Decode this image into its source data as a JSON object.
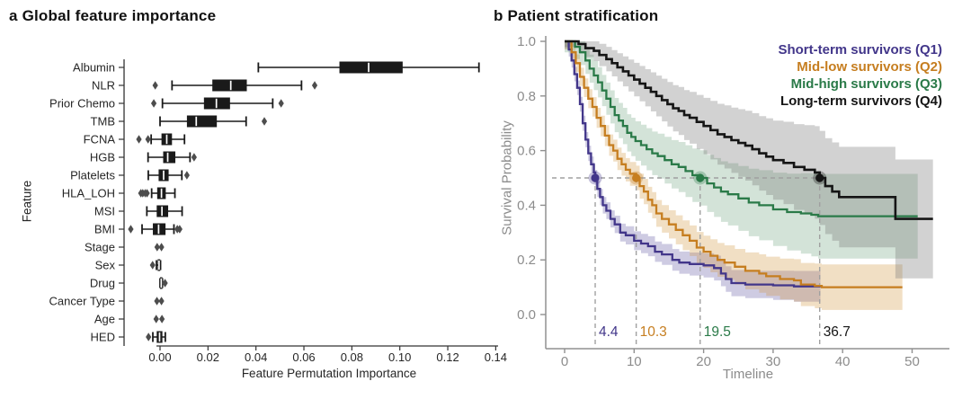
{
  "figure": {
    "panel_a": {
      "title": "a Global feature importance",
      "xlabel": "Feature Permutation Importance",
      "ylabel": "Feature"
    },
    "panel_b": {
      "title": "b Patient stratification",
      "xlabel": "Timeline",
      "ylabel": "Survival Probability"
    }
  },
  "colors": {
    "box_fill": "#1a1a1a",
    "box_line": "#1a1a1a",
    "median_line": "#ffffff",
    "outlier": "#4d4d4d",
    "axis_a": "#333333",
    "text_a": "#262626",
    "axis_b": "#909090",
    "text_b": "#8c8c8c",
    "dashed_guide": "#a0a0a0",
    "background": "#ffffff"
  },
  "chart_data": [
    {
      "type": "boxplot",
      "orientation": "horizontal",
      "title": "a Global feature importance",
      "xlabel": "Feature Permutation Importance",
      "ylabel": "Feature",
      "xlim": [
        -0.015,
        0.141
      ],
      "xticks": [
        0.0,
        0.02,
        0.04,
        0.06,
        0.08,
        0.1,
        0.12,
        0.14
      ],
      "xtick_labels": [
        "0.00",
        "0.02",
        "0.04",
        "0.06",
        "0.08",
        "0.10",
        "0.12",
        "0.14"
      ],
      "grid": false,
      "features": [
        {
          "name": "Albumin",
          "lo": 0.041,
          "q1": 0.075,
          "med": 0.087,
          "q3": 0.101,
          "hi": 0.133,
          "outliers": []
        },
        {
          "name": "NLR",
          "lo": 0.005,
          "q1": 0.022,
          "med": 0.0295,
          "q3": 0.036,
          "hi": 0.059,
          "outliers": [
            -0.002,
            0.0645
          ]
        },
        {
          "name": "Prior Chemo",
          "lo": 0.001,
          "q1": 0.0185,
          "med": 0.0235,
          "q3": 0.029,
          "hi": 0.047,
          "outliers": [
            -0.0026,
            0.0505
          ]
        },
        {
          "name": "TMB",
          "lo": 0.0,
          "q1": 0.0114,
          "med": 0.0151,
          "q3": 0.0235,
          "hi": 0.0359,
          "outliers": [
            0.0435
          ]
        },
        {
          "name": "FCNA",
          "lo": -0.0037,
          "q1": 0.0008,
          "med": 0.0028,
          "q3": 0.0048,
          "hi": 0.0102,
          "outliers": [
            -0.0088,
            -0.005
          ]
        },
        {
          "name": "HGB",
          "lo": -0.005,
          "q1": 0.0015,
          "med": 0.0032,
          "q3": 0.0062,
          "hi": 0.0125,
          "outliers": [
            0.0142
          ]
        },
        {
          "name": "Platelets",
          "lo": -0.0049,
          "q1": -0.0004,
          "med": 0.0015,
          "q3": 0.0034,
          "hi": 0.0091,
          "outliers": [
            0.0112
          ]
        },
        {
          "name": "HLA_LOH",
          "lo": -0.0035,
          "q1": -0.001,
          "med": 0.0006,
          "q3": 0.0022,
          "hi": 0.0062,
          "outliers": [
            -0.008,
            -0.0072,
            -0.0062,
            -0.0054
          ]
        },
        {
          "name": "MSI",
          "lo": -0.0055,
          "q1": -0.0012,
          "med": 0.0008,
          "q3": 0.0032,
          "hi": 0.0092,
          "outliers": []
        },
        {
          "name": "BMI",
          "lo": -0.0075,
          "q1": -0.0028,
          "med": -0.0006,
          "q3": 0.0021,
          "hi": 0.0058,
          "outliers": [
            -0.0122,
            0.0072,
            0.0082
          ]
        },
        {
          "name": "Stage",
          "lo": null,
          "q1": null,
          "med": null,
          "q3": null,
          "hi": null,
          "outliers": [
            -0.0012,
            0.0006
          ]
        },
        {
          "name": "Sex",
          "lo": -0.0015,
          "q1": -0.0008,
          "med": -0.0004,
          "q3": -0.0001,
          "hi": 0.0002,
          "outliers": [
            -0.0031
          ]
        },
        {
          "name": "Drug",
          "lo": 0.0,
          "q1": 0.0002,
          "med": 0.0005,
          "q3": 0.0008,
          "hi": 0.001,
          "outliers": [
            0.0021
          ]
        },
        {
          "name": "Cancer Type",
          "lo": null,
          "q1": null,
          "med": null,
          "q3": null,
          "hi": null,
          "outliers": [
            -0.0013,
            0.0006
          ]
        },
        {
          "name": "Age",
          "lo": null,
          "q1": null,
          "med": null,
          "q3": null,
          "hi": null,
          "outliers": [
            -0.0016,
            0.0008
          ]
        },
        {
          "name": "HED",
          "lo": -0.003,
          "q1": -0.0012,
          "med": -0.0002,
          "q3": 0.0008,
          "hi": 0.0022,
          "outliers": [
            -0.0048
          ]
        }
      ]
    },
    {
      "type": "line",
      "subtype": "kaplan-meier",
      "title": "b Patient stratification",
      "xlabel": "Timeline",
      "ylabel": "Survival Probability",
      "xlim": [
        -2.7,
        55.4
      ],
      "ylim": [
        -0.12,
        1.01
      ],
      "xticks": [
        0,
        10,
        20,
        30,
        40,
        50
      ],
      "xtick_labels": [
        "0",
        "10",
        "20",
        "30",
        "40",
        "50"
      ],
      "yticks": [
        0.0,
        0.2,
        0.4,
        0.6,
        0.8,
        1.0
      ],
      "ytick_labels": [
        "0.0",
        "0.2",
        "0.4",
        "0.6",
        "0.8",
        "1.0"
      ],
      "grid": false,
      "legend_position": "upper right",
      "median_guide_y": 0.5,
      "series": [
        {
          "name": "Short-term survivors (Q1)",
          "color": "#42368a",
          "band_color": "rgba(78,68,150,0.28)",
          "median": 4.4,
          "median_label": "4.4",
          "band_width": [
            0.025,
            0.06
          ],
          "steps": [
            [
              0,
              1
            ],
            [
              0.6,
              0.97
            ],
            [
              1,
              0.93
            ],
            [
              1.4,
              0.88
            ],
            [
              1.8,
              0.83
            ],
            [
              2.2,
              0.77
            ],
            [
              2.6,
              0.7
            ],
            [
              3,
              0.64
            ],
            [
              3.4,
              0.59
            ],
            [
              3.8,
              0.55
            ],
            [
              4.2,
              0.52
            ],
            [
              4.4,
              0.5
            ],
            [
              4.7,
              0.46
            ],
            [
              5.1,
              0.43
            ],
            [
              5.5,
              0.4
            ],
            [
              6,
              0.38
            ],
            [
              6.6,
              0.35
            ],
            [
              7.2,
              0.33
            ],
            [
              8,
              0.3
            ],
            [
              8.8,
              0.29
            ],
            [
              10,
              0.27
            ],
            [
              11,
              0.26
            ],
            [
              12,
              0.25
            ],
            [
              13,
              0.23
            ],
            [
              14,
              0.22
            ],
            [
              15.5,
              0.2
            ],
            [
              16.5,
              0.19
            ],
            [
              18,
              0.185
            ],
            [
              20,
              0.18
            ],
            [
              21.5,
              0.17
            ],
            [
              22.5,
              0.15
            ],
            [
              23.2,
              0.13
            ],
            [
              24,
              0.115
            ],
            [
              26,
              0.11
            ],
            [
              30,
              0.107
            ],
            [
              33,
              0.103
            ],
            [
              36.8,
              0.1
            ]
          ]
        },
        {
          "name": "Mid-low survivors (Q2)",
          "color": "#c67e20",
          "band_color": "rgba(210,150,60,0.30)",
          "median": 10.3,
          "median_label": "10.3",
          "band_width": [
            0.03,
            0.1
          ],
          "steps": [
            [
              0,
              1
            ],
            [
              1,
              0.96
            ],
            [
              1.6,
              0.92
            ],
            [
              2.2,
              0.87
            ],
            [
              2.8,
              0.83
            ],
            [
              3.4,
              0.79
            ],
            [
              4,
              0.76
            ],
            [
              4.6,
              0.72
            ],
            [
              5.2,
              0.69
            ],
            [
              5.8,
              0.655
            ],
            [
              6.4,
              0.62
            ],
            [
              7,
              0.6
            ],
            [
              7.6,
              0.57
            ],
            [
              8.2,
              0.55
            ],
            [
              8.8,
              0.53
            ],
            [
              9.4,
              0.515
            ],
            [
              10.3,
              0.5
            ],
            [
              10.8,
              0.47
            ],
            [
              11.4,
              0.45
            ],
            [
              12,
              0.42
            ],
            [
              12.6,
              0.4
            ],
            [
              13.2,
              0.37
            ],
            [
              14,
              0.35
            ],
            [
              15,
              0.33
            ],
            [
              16,
              0.31
            ],
            [
              17,
              0.29
            ],
            [
              18,
              0.27
            ],
            [
              19,
              0.245
            ],
            [
              20,
              0.23
            ],
            [
              21,
              0.215
            ],
            [
              22,
              0.2
            ],
            [
              23,
              0.19
            ],
            [
              24.5,
              0.175
            ],
            [
              26,
              0.16
            ],
            [
              28,
              0.15
            ],
            [
              29,
              0.14
            ],
            [
              31,
              0.13
            ],
            [
              33,
              0.125
            ],
            [
              34,
              0.11
            ],
            [
              36,
              0.105
            ],
            [
              37,
              0.1
            ],
            [
              48.6,
              0.1
            ]
          ]
        },
        {
          "name": "Mid-high survivors (Q3)",
          "color": "#2a7a48",
          "band_color": "rgba(80,145,100,0.25)",
          "median": 19.5,
          "median_label": "19.5",
          "band_width": [
            0.04,
            0.2
          ],
          "steps": [
            [
              0,
              1
            ],
            [
              1.5,
              0.98
            ],
            [
              2.2,
              0.96
            ],
            [
              3,
              0.93
            ],
            [
              3.6,
              0.9
            ],
            [
              4.2,
              0.875
            ],
            [
              4.8,
              0.85
            ],
            [
              5.4,
              0.82
            ],
            [
              6,
              0.79
            ],
            [
              6.6,
              0.76
            ],
            [
              7.2,
              0.73
            ],
            [
              7.8,
              0.71
            ],
            [
              8.4,
              0.69
            ],
            [
              9,
              0.665
            ],
            [
              9.6,
              0.65
            ],
            [
              10.2,
              0.635
            ],
            [
              11,
              0.62
            ],
            [
              11.8,
              0.605
            ],
            [
              12.6,
              0.59
            ],
            [
              13.4,
              0.58
            ],
            [
              14.4,
              0.565
            ],
            [
              15.4,
              0.55
            ],
            [
              16.4,
              0.54
            ],
            [
              17.4,
              0.525
            ],
            [
              18.4,
              0.51
            ],
            [
              19.5,
              0.5
            ],
            [
              20.5,
              0.48
            ],
            [
              21.5,
              0.465
            ],
            [
              22.5,
              0.45
            ],
            [
              23.5,
              0.44
            ],
            [
              25,
              0.425
            ],
            [
              26.5,
              0.41
            ],
            [
              28,
              0.4
            ],
            [
              30,
              0.385
            ],
            [
              32,
              0.375
            ],
            [
              34,
              0.37
            ],
            [
              35.5,
              0.365
            ],
            [
              36.5,
              0.36
            ],
            [
              50.8,
              0.36
            ]
          ]
        },
        {
          "name": "Long-term survivors (Q4)",
          "color": "#151515",
          "band_color": "rgba(115,115,115,0.32)",
          "median": 36.7,
          "median_label": "36.7",
          "band_width": [
            0.02,
            0.24
          ],
          "steps": [
            [
              0,
              1
            ],
            [
              2,
              0.99
            ],
            [
              3,
              0.975
            ],
            [
              4.2,
              0.965
            ],
            [
              5,
              0.95
            ],
            [
              6,
              0.935
            ],
            [
              6.8,
              0.92
            ],
            [
              7.6,
              0.905
            ],
            [
              8.4,
              0.89
            ],
            [
              9.2,
              0.875
            ],
            [
              10,
              0.86
            ],
            [
              10.8,
              0.845
            ],
            [
              11.6,
              0.83
            ],
            [
              12.4,
              0.815
            ],
            [
              13.2,
              0.8
            ],
            [
              14,
              0.785
            ],
            [
              14.8,
              0.77
            ],
            [
              15.6,
              0.755
            ],
            [
              16.4,
              0.745
            ],
            [
              17.2,
              0.73
            ],
            [
              18,
              0.72
            ],
            [
              19,
              0.705
            ],
            [
              20,
              0.69
            ],
            [
              21,
              0.675
            ],
            [
              22,
              0.66
            ],
            [
              23,
              0.65
            ],
            [
              24,
              0.638
            ],
            [
              25,
              0.628
            ],
            [
              26,
              0.618
            ],
            [
              27,
              0.605
            ],
            [
              28,
              0.59
            ],
            [
              29,
              0.578
            ],
            [
              30,
              0.565
            ],
            [
              31.5,
              0.555
            ],
            [
              33,
              0.54
            ],
            [
              34.5,
              0.53
            ],
            [
              36,
              0.52
            ],
            [
              36.7,
              0.5
            ],
            [
              37.5,
              0.47
            ],
            [
              38.5,
              0.45
            ],
            [
              39.5,
              0.43
            ],
            [
              47.6,
              0.35
            ],
            [
              53,
              0.35
            ]
          ]
        }
      ]
    }
  ]
}
